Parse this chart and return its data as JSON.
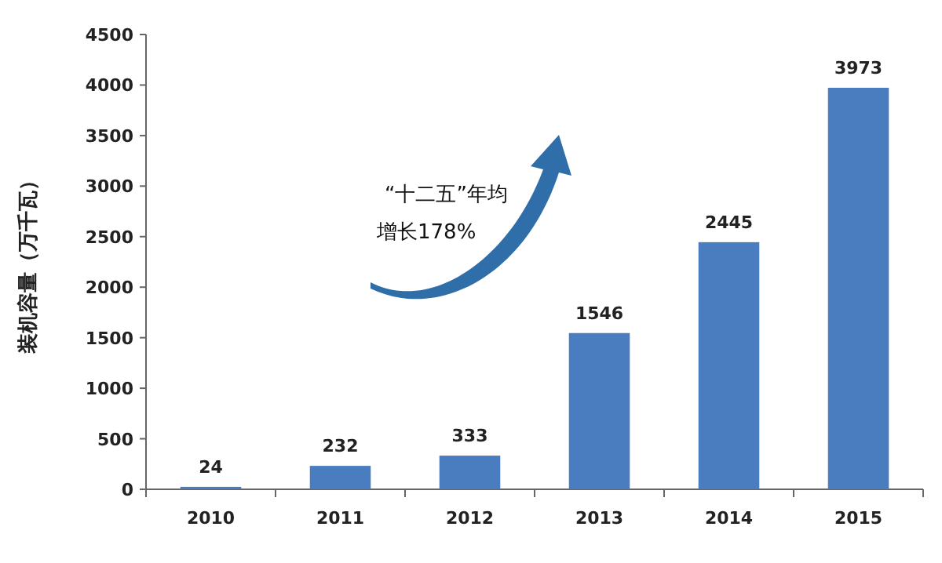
{
  "chart_data": {
    "type": "bar",
    "categories": [
      "2010",
      "2011",
      "2012",
      "2013",
      "2014",
      "2015"
    ],
    "values": [
      24,
      232,
      333,
      1546,
      2445,
      3973
    ],
    "color": "#4a7cc0",
    "data_labels": true,
    "ylabel": "装机容量（万千瓦）",
    "ylim": [
      0,
      4500
    ],
    "yticks": [
      0,
      500,
      1000,
      1500,
      2000,
      2500,
      3000,
      3500,
      4000,
      4500
    ],
    "annotations": [
      "“十二五”年均",
      "增长178%"
    ],
    "grid": false
  }
}
